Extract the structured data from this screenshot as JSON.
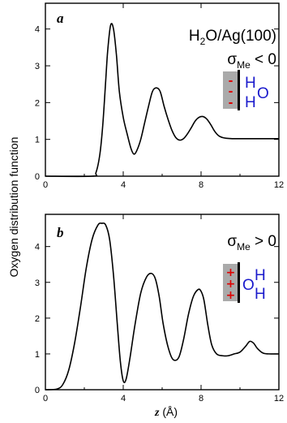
{
  "figure": {
    "ylabel": "Oxygen distribution function",
    "xlabel_symbol": "z",
    "xlabel_unit": " (Å)"
  },
  "chart_data": [
    {
      "type": "line",
      "panel": "a",
      "label": "H2O/Ag(100)",
      "label_parts": {
        "main": "H",
        "sub": "2",
        "rest": "O/Ag(100)"
      },
      "condition": {
        "symbol": "σ",
        "sub": "Me",
        "rel": " < 0"
      },
      "xlim": [
        0,
        12
      ],
      "ylim": [
        0,
        4.7
      ],
      "xticks": [
        0,
        4,
        8,
        12
      ],
      "yticks": [
        0,
        1,
        2,
        3,
        4
      ],
      "xticklabels": [
        "0",
        "4",
        "8",
        "12"
      ],
      "yticklabels": [
        "0",
        "1",
        "2",
        "3",
        "4"
      ],
      "inset": {
        "signs": [
          "-",
          "-",
          "-"
        ],
        "atoms": [
          "H",
          "O",
          "H"
        ],
        "surface_color": "#aaaaaa",
        "sign_color": "#e00000",
        "atom_color": "#1a1acc"
      },
      "series": [
        {
          "x": [
            0,
            2.4,
            2.6,
            2.8,
            2.95,
            3.1,
            3.2,
            3.35,
            3.5,
            3.65,
            3.8,
            4.0,
            4.2,
            4.4,
            4.55,
            4.7,
            4.9,
            5.1,
            5.3,
            5.5,
            5.7,
            5.9,
            6.1,
            6.3,
            6.5,
            6.7,
            6.9,
            7.1,
            7.3,
            7.5,
            7.7,
            7.9,
            8.1,
            8.3,
            8.5,
            8.7,
            8.9,
            9.1,
            9.3,
            9.6,
            10,
            11,
            12
          ],
          "y": [
            0,
            0,
            0.1,
            0.6,
            1.4,
            2.6,
            3.4,
            4.1,
            4.0,
            3.3,
            2.3,
            1.6,
            1.15,
            0.75,
            0.6,
            0.7,
            1.0,
            1.45,
            1.9,
            2.3,
            2.4,
            2.3,
            1.9,
            1.55,
            1.25,
            1.05,
            0.98,
            1.02,
            1.15,
            1.32,
            1.5,
            1.6,
            1.62,
            1.55,
            1.4,
            1.22,
            1.1,
            1.05,
            1.03,
            1.02,
            1.02,
            1.02,
            1.02
          ]
        }
      ]
    },
    {
      "type": "line",
      "panel": "b",
      "condition": {
        "symbol": "σ",
        "sub": "Me",
        "rel": " > 0"
      },
      "xlim": [
        0,
        12
      ],
      "ylim": [
        0,
        4.9
      ],
      "xticks": [
        0,
        4,
        8,
        12
      ],
      "yticks": [
        0,
        1,
        2,
        3,
        4
      ],
      "xticklabels": [
        "0",
        "4",
        "8",
        "12"
      ],
      "yticklabels": [
        "0",
        "1",
        "2",
        "3",
        "4"
      ],
      "inset": {
        "signs": [
          "+",
          "+",
          "+"
        ],
        "atoms": [
          "O",
          "H",
          "H"
        ],
        "surface_color": "#aaaaaa",
        "sign_color": "#e00000",
        "atom_color": "#1a1acc"
      },
      "series": [
        {
          "x": [
            0,
            0.6,
            0.9,
            1.2,
            1.5,
            1.8,
            2.1,
            2.4,
            2.7,
            2.9,
            3.1,
            3.3,
            3.5,
            3.7,
            3.85,
            4.0,
            4.15,
            4.35,
            4.6,
            4.9,
            5.2,
            5.45,
            5.65,
            5.85,
            6.05,
            6.3,
            6.55,
            6.85,
            7.1,
            7.35,
            7.6,
            7.85,
            8.0,
            8.15,
            8.35,
            8.55,
            8.8,
            9.1,
            9.4,
            9.7,
            10.0,
            10.3,
            10.5,
            10.7,
            10.9,
            11.2,
            11.6,
            12
          ],
          "y": [
            0,
            0.02,
            0.15,
            0.55,
            1.3,
            2.3,
            3.4,
            4.2,
            4.6,
            4.65,
            4.6,
            4.2,
            3.2,
            1.8,
            0.8,
            0.25,
            0.3,
            0.9,
            1.8,
            2.7,
            3.15,
            3.25,
            3.1,
            2.6,
            1.85,
            1.2,
            0.85,
            0.9,
            1.4,
            2.1,
            2.6,
            2.8,
            2.75,
            2.5,
            1.8,
            1.25,
            1.0,
            0.95,
            0.95,
            1.0,
            1.05,
            1.22,
            1.35,
            1.3,
            1.15,
            1.02,
            1.0,
            1.0
          ]
        }
      ]
    }
  ]
}
